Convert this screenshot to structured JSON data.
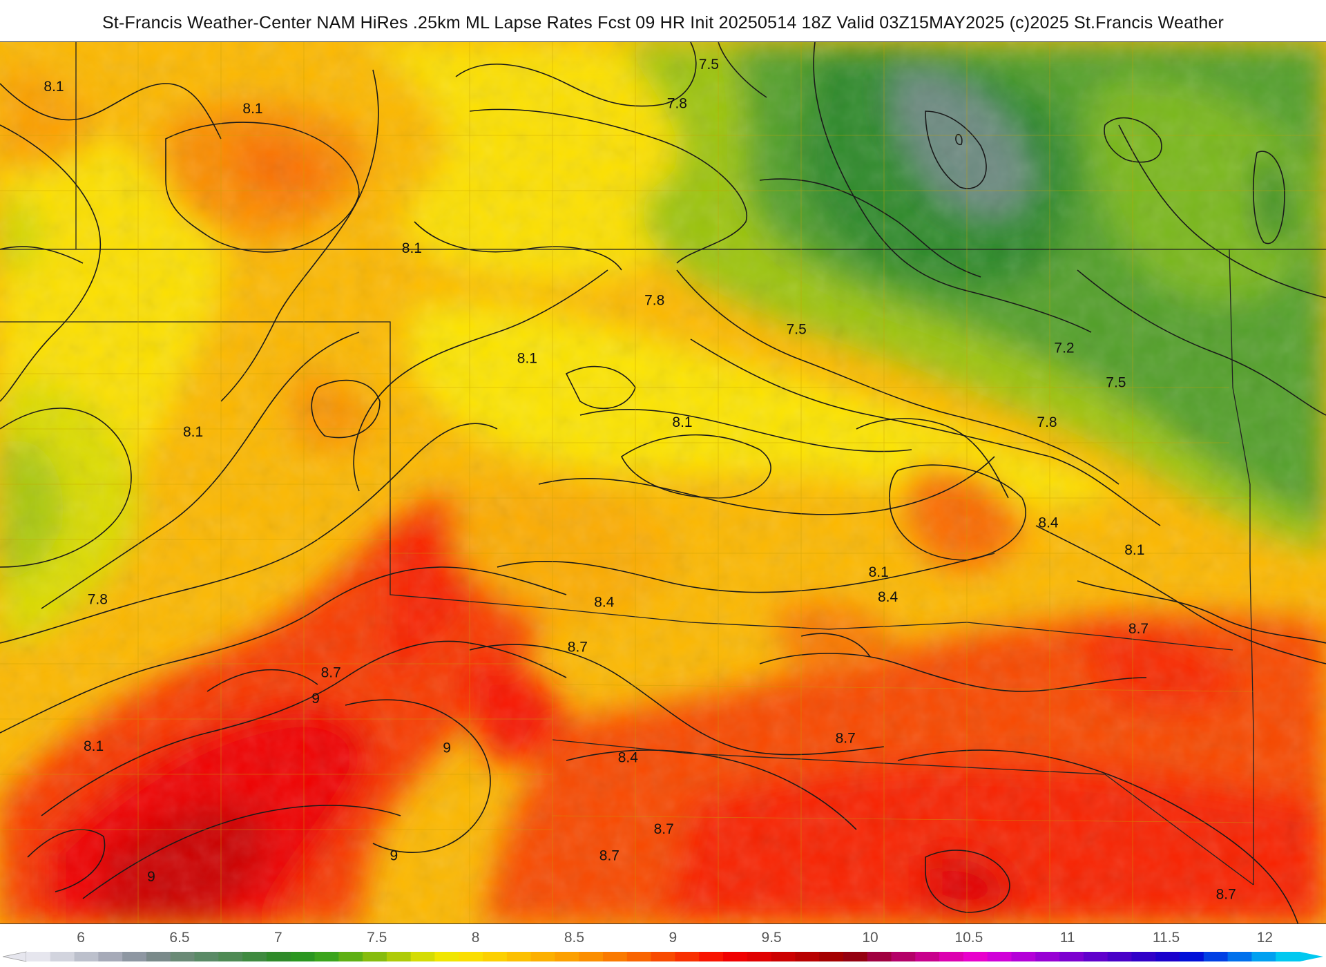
{
  "title": "St-Francis Weather-Center NAM HiRes .25km ML Lapse Rates  Fcst 09 HR Init 20250514 18Z  Valid 03Z15MAY2025    (c)2025 St.Francis Weather",
  "colorbar": {
    "ticks": [
      "6",
      "6.5",
      "7",
      "7.5",
      "8",
      "8.5",
      "9",
      "9.5",
      "10",
      "10.5",
      "11",
      "11.5",
      "12"
    ],
    "min": 5.8,
    "max": 12.1,
    "colors": [
      "#e6e6ee",
      "#d2d4de",
      "#bcc0cc",
      "#a6aab8",
      "#8e97a2",
      "#7a8a8a",
      "#6a8a76",
      "#5a8a66",
      "#4e8a54",
      "#3f8a40",
      "#2f8a2a",
      "#2a9620",
      "#3aa41c",
      "#5eb014",
      "#86bc0e",
      "#aecb08",
      "#d4dc04",
      "#f0e600",
      "#fade00",
      "#fcd000",
      "#fcc000",
      "#fcb000",
      "#fca000",
      "#fb8e00",
      "#fa7a00",
      "#f96400",
      "#f84a00",
      "#f83000",
      "#f81400",
      "#f00000",
      "#e00000",
      "#cc0000",
      "#b80000",
      "#a40000",
      "#940010",
      "#a00040",
      "#b40068",
      "#c8008c",
      "#dc00b0",
      "#e800cc",
      "#d000d8",
      "#b400d8",
      "#9800d4",
      "#7c00d0",
      "#6000cc",
      "#4800c8",
      "#3000c8",
      "#1a00cc",
      "#0010d8",
      "#0040e4",
      "#0070ec",
      "#00a0f0",
      "#00c8f0"
    ]
  },
  "contour_labels": [
    {
      "text": "8.1",
      "lon": 0.033,
      "lat": 0.04
    },
    {
      "text": "8.1",
      "lon": 0.183,
      "lat": 0.065
    },
    {
      "text": "7.5",
      "lon": 0.527,
      "lat": 0.015
    },
    {
      "text": "7.8",
      "lon": 0.503,
      "lat": 0.059
    },
    {
      "text": "8.1",
      "lon": 0.303,
      "lat": 0.223
    },
    {
      "text": "7.8",
      "lon": 0.486,
      "lat": 0.282
    },
    {
      "text": "7.5",
      "lon": 0.593,
      "lat": 0.315
    },
    {
      "text": "8.1",
      "lon": 0.39,
      "lat": 0.348
    },
    {
      "text": "7.2",
      "lon": 0.795,
      "lat": 0.336
    },
    {
      "text": "7.5",
      "lon": 0.834,
      "lat": 0.375
    },
    {
      "text": "8.1",
      "lon": 0.138,
      "lat": 0.431
    },
    {
      "text": "8.1",
      "lon": 0.507,
      "lat": 0.42
    },
    {
      "text": "7.8",
      "lon": 0.782,
      "lat": 0.42
    },
    {
      "text": "8.4",
      "lon": 0.783,
      "lat": 0.534
    },
    {
      "text": "8.1",
      "lon": 0.848,
      "lat": 0.565
    },
    {
      "text": "8.1",
      "lon": 0.655,
      "lat": 0.59
    },
    {
      "text": "8.4",
      "lon": 0.662,
      "lat": 0.618
    },
    {
      "text": "7.8",
      "lon": 0.066,
      "lat": 0.621
    },
    {
      "text": "8.4",
      "lon": 0.448,
      "lat": 0.624
    },
    {
      "text": "8.7",
      "lon": 0.851,
      "lat": 0.654
    },
    {
      "text": "8.7",
      "lon": 0.428,
      "lat": 0.675
    },
    {
      "text": "8.7",
      "lon": 0.242,
      "lat": 0.704
    },
    {
      "text": "9",
      "lon": 0.235,
      "lat": 0.733
    },
    {
      "text": "9",
      "lon": 0.334,
      "lat": 0.789
    },
    {
      "text": "8.7",
      "lon": 0.63,
      "lat": 0.778
    },
    {
      "text": "8.1",
      "lon": 0.063,
      "lat": 0.787
    },
    {
      "text": "8.4",
      "lon": 0.466,
      "lat": 0.8
    },
    {
      "text": "8.7",
      "lon": 0.493,
      "lat": 0.881
    },
    {
      "text": "8.7",
      "lon": 0.452,
      "lat": 0.911
    },
    {
      "text": "9",
      "lon": 0.294,
      "lat": 0.911
    },
    {
      "text": "9",
      "lon": 0.111,
      "lat": 0.935
    },
    {
      "text": "8.7",
      "lon": 0.917,
      "lat": 0.955
    }
  ]
}
